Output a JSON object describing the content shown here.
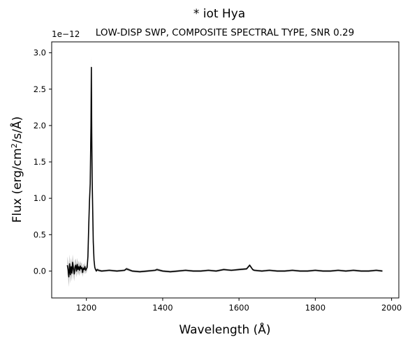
{
  "chart_data": {
    "type": "line",
    "title": "* iot Hya",
    "subtitle": "LOW-DISP SWP, COMPOSITE SPECTRAL TYPE, SNR 0.29",
    "xlabel": "Wavelength (Å)",
    "ylabel_parts": {
      "before": "Flux (erg/cm",
      "sup": "2",
      "after": "/s/Å)"
    },
    "offset_text": "1e−12",
    "xlim": [
      1109,
      2019
    ],
    "ylim": [
      -0.37,
      3.15
    ],
    "xticks": [
      1200,
      1400,
      1600,
      1800,
      2000
    ],
    "xtick_labels": [
      "1200",
      "1400",
      "1600",
      "1800",
      "2000"
    ],
    "yticks": [
      0.0,
      0.5,
      1.0,
      1.5,
      2.0,
      2.5,
      3.0
    ],
    "ytick_labels": [
      "0.0",
      "0.5",
      "1.0",
      "1.5",
      "2.0",
      "2.5",
      "3.0"
    ],
    "y_scale_factor": 1e-12,
    "series": [
      {
        "color": "#000000",
        "band_color": "#b3b3b3",
        "x": [
          1150,
          1152,
          1154,
          1156,
          1158,
          1160,
          1162,
          1164,
          1166,
          1168,
          1170,
          1172,
          1174,
          1176,
          1178,
          1180,
          1182,
          1184,
          1186,
          1188,
          1190,
          1192,
          1194,
          1196,
          1198,
          1200,
          1202,
          1204,
          1206,
          1208,
          1210,
          1212,
          1213,
          1214,
          1215,
          1216,
          1217,
          1218,
          1220,
          1222,
          1224,
          1226,
          1228,
          1232,
          1240,
          1260,
          1280,
          1300,
          1305,
          1310,
          1320,
          1340,
          1360,
          1380,
          1385,
          1400,
          1420,
          1440,
          1460,
          1480,
          1500,
          1520,
          1540,
          1560,
          1580,
          1600,
          1620,
          1628,
          1632,
          1636,
          1640,
          1660,
          1680,
          1700,
          1720,
          1740,
          1760,
          1780,
          1800,
          1820,
          1840,
          1860,
          1880,
          1900,
          1920,
          1940,
          1960,
          1976
        ],
        "y": [
          0.08,
          0.02,
          -0.08,
          0.1,
          -0.05,
          0.06,
          -0.03,
          0.12,
          0.03,
          -0.04,
          0.05,
          0.08,
          0.0,
          0.09,
          0.02,
          0.06,
          0.01,
          0.07,
          0.03,
          0.05,
          -0.02,
          0.04,
          0.02,
          0.06,
          0.01,
          0.03,
          0.05,
          0.2,
          0.6,
          0.95,
          1.2,
          2.0,
          2.8,
          1.9,
          1.3,
          1.0,
          0.7,
          0.4,
          0.15,
          0.05,
          0.02,
          0.0,
          0.02,
          0.01,
          0.0,
          0.01,
          0.0,
          0.01,
          0.03,
          0.02,
          0.0,
          -0.01,
          0.0,
          0.01,
          0.02,
          0.0,
          -0.01,
          0.0,
          0.01,
          0.0,
          0.0,
          0.01,
          0.0,
          0.02,
          0.01,
          0.02,
          0.03,
          0.08,
          0.05,
          0.02,
          0.01,
          0.0,
          0.01,
          0.0,
          0.0,
          0.01,
          0.0,
          0.0,
          0.01,
          0.0,
          0.0,
          0.01,
          0.0,
          0.01,
          0.0,
          0.0,
          0.01,
          0.0
        ],
        "err": [
          0.12,
          0.12,
          0.14,
          0.13,
          0.12,
          0.12,
          0.11,
          0.11,
          0.1,
          0.1,
          0.1,
          0.09,
          0.09,
          0.09,
          0.08,
          0.08,
          0.08,
          0.07,
          0.07,
          0.07,
          0.06,
          0.06,
          0.06,
          0.06,
          0.05,
          0.05,
          0.05,
          0.06,
          0.08,
          0.1,
          0.12,
          0.15,
          0.14,
          0.12,
          0.1,
          0.09,
          0.08,
          0.06,
          0.04,
          0.03,
          0.02,
          0.02,
          0.02,
          0.02,
          0.015,
          0.015,
          0.015,
          0.015,
          0.02,
          0.02,
          0.015,
          0.015,
          0.015,
          0.015,
          0.02,
          0.015,
          0.015,
          0.015,
          0.015,
          0.015,
          0.015,
          0.015,
          0.015,
          0.015,
          0.015,
          0.015,
          0.015,
          0.02,
          0.02,
          0.015,
          0.015,
          0.015,
          0.015,
          0.015,
          0.015,
          0.015,
          0.015,
          0.015,
          0.015,
          0.015,
          0.015,
          0.015,
          0.015,
          0.015,
          0.015,
          0.015,
          0.015,
          0.015
        ]
      }
    ]
  }
}
